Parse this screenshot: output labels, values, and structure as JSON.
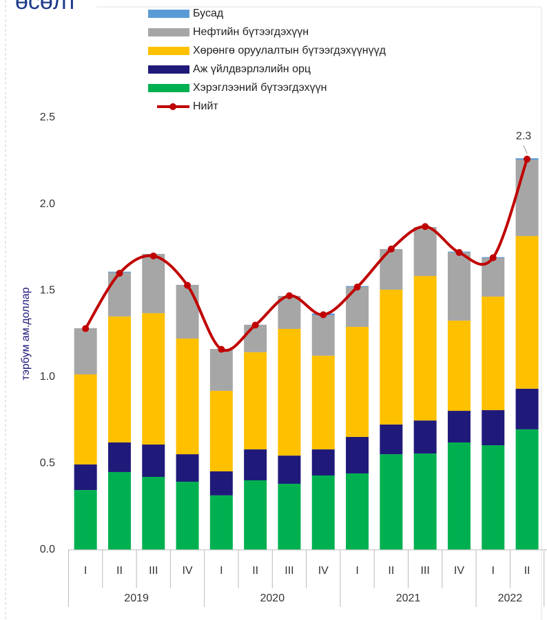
{
  "chart_data": {
    "type": "stacked_bar_line",
    "title": "өсөлт",
    "y_label": "тэрбум ам.доллар",
    "categories": [
      "I",
      "II",
      "III",
      "IV",
      "I",
      "II",
      "III",
      "IV",
      "I",
      "II",
      "III",
      "IV",
      "I",
      "II"
    ],
    "groups": [
      {
        "label": "2019",
        "count": 4
      },
      {
        "label": "2020",
        "count": 4
      },
      {
        "label": "2021",
        "count": 4
      },
      {
        "label": "2022",
        "count": 2
      }
    ],
    "ylim": [
      0,
      2.5
    ],
    "yticks": [
      {
        "value": 0,
        "label": "0.0"
      },
      0.5,
      {
        "value": 1,
        "label": "1.0"
      },
      1.5,
      {
        "value": 2,
        "label": "2.0"
      },
      2.5
    ],
    "series": [
      {
        "name": "Хэрэглээний бүтээгдэхүүн",
        "color": "#00b050",
        "values": [
          0.346,
          0.45,
          0.422,
          0.394,
          0.315,
          0.402,
          0.382,
          0.43,
          0.442,
          0.553,
          0.557,
          0.621,
          0.605,
          0.697
        ]
      },
      {
        "name": "Аж үйлдвэрлэлийн орц",
        "color": "#1f1a7a",
        "values": [
          0.148,
          0.171,
          0.187,
          0.159,
          0.139,
          0.179,
          0.163,
          0.151,
          0.211,
          0.172,
          0.191,
          0.183,
          0.203,
          0.235
        ]
      },
      {
        "name": "Хөрөнгө оруулалтын бүтээгдэхүүнүүд",
        "color": "#ffc000",
        "values": [
          0.521,
          0.729,
          0.76,
          0.669,
          0.466,
          0.562,
          0.733,
          0.542,
          0.637,
          0.78,
          0.836,
          0.522,
          0.657,
          0.883
        ]
      },
      {
        "name": "Нефтийн бүтээгдэхүүн",
        "color": "#a6a6a6",
        "values": [
          0.267,
          0.254,
          0.343,
          0.311,
          0.242,
          0.159,
          0.191,
          0.234,
          0.231,
          0.235,
          0.283,
          0.394,
          0.223,
          0.442
        ]
      },
      {
        "name": "Бусад",
        "color": "#5b9bd5",
        "values": [
          0,
          0.005,
          0,
          0,
          0,
          0,
          0,
          0.01,
          0.005,
          0,
          0,
          0.005,
          0.005,
          0.008
        ]
      }
    ],
    "line": {
      "name": "Нийт",
      "color": "#c00000",
      "values": [
        1.28,
        1.6,
        1.7,
        1.53,
        1.16,
        1.3,
        1.47,
        1.36,
        1.52,
        1.74,
        1.87,
        1.72,
        1.69,
        2.26
      ],
      "value_labels": [
        null,
        null,
        null,
        null,
        null,
        null,
        null,
        null,
        null,
        null,
        null,
        null,
        null,
        "2.3"
      ]
    }
  }
}
